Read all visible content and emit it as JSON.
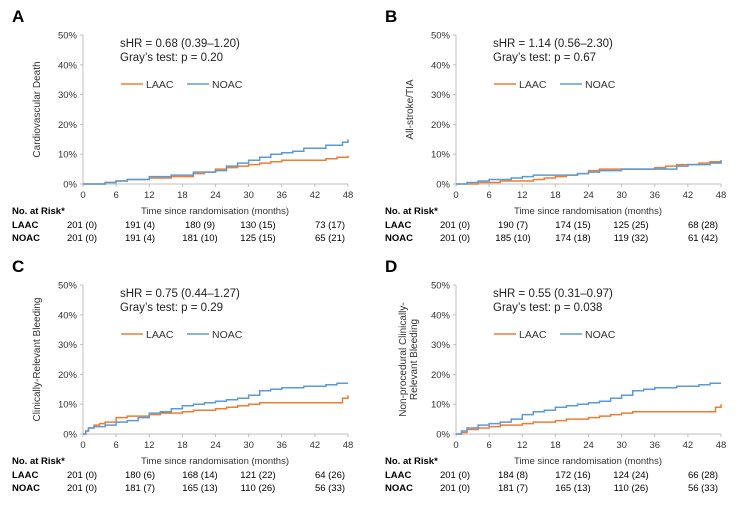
{
  "panels": [
    {
      "letter": "A",
      "stat_line1": "sHR = 0.68 (0.39–1.20)",
      "stat_line2": "Gray’s test: p = 0.20",
      "ylabel_lines": [
        "Cardiovascular  Death"
      ],
      "xlabel": "Time since randomisation  (months)",
      "risk_header": "No. at Risk*",
      "risk_rows": [
        {
          "name": "LAAC",
          "values": [
            "201 (0)",
            "191 (4)",
            "180 (9)",
            "130 (15)",
            "73 (17)"
          ]
        },
        {
          "name": "NOAC",
          "values": [
            "201 (0)",
            "191 (4)",
            "181 (10)",
            "125 (15)",
            "65 (21)"
          ]
        }
      ]
    },
    {
      "letter": "B",
      "stat_line1": "sHR = 1.14 (0.56–2.30)",
      "stat_line2": "Gray’s test: p = 0.67",
      "ylabel_lines": [
        "All-stroke/TIA"
      ],
      "xlabel": "Time since randomisation  (months)",
      "risk_header": "No. at Risk*",
      "risk_rows": [
        {
          "name": "LAAC",
          "values": [
            "201 (0)",
            "190 (7)",
            "174 (15)",
            "125 (25)",
            "68 (28)"
          ]
        },
        {
          "name": "NOAC",
          "values": [
            "201 (0)",
            "185 (10)",
            "174 (18)",
            "119 (32)",
            "61 (42)"
          ]
        }
      ]
    },
    {
      "letter": "C",
      "stat_line1": "sHR = 0.75 (0.44–1.27)",
      "stat_line2": "Gray’s test: p = 0.29",
      "ylabel_lines": [
        "Clinically-Relevant  Bleeding"
      ],
      "xlabel": "Time since randomisation  (months)",
      "risk_header": "No. at Risk*",
      "risk_rows": [
        {
          "name": "LAAC",
          "values": [
            "201 (0)",
            "180 (6)",
            "168 (14)",
            "121 (22)",
            "64 (26)"
          ]
        },
        {
          "name": "NOAC",
          "values": [
            "201 (0)",
            "181 (7)",
            "165 (13)",
            "110 (26)",
            "56 (33)"
          ]
        }
      ]
    },
    {
      "letter": "D",
      "stat_line1": "sHR = 0.55 (0.31–0.97)",
      "stat_line2": "Gray’s test: p = 0.038",
      "ylabel_lines": [
        "Non-procedural  Clinically-",
        "Relevant  Bleeding"
      ],
      "xlabel": "Time since randomisation  (months)",
      "risk_header": "No. at Risk*",
      "risk_rows": [
        {
          "name": "LAAC",
          "values": [
            "201 (0)",
            "184 (8)",
            "172 (16)",
            "124 (24)",
            "66 (28)"
          ]
        },
        {
          "name": "NOAC",
          "values": [
            "201 (0)",
            "181 (7)",
            "165 (13)",
            "110 (26)",
            "56 (33)"
          ]
        }
      ]
    }
  ],
  "chart_data": [
    {
      "type": "line",
      "x_ticks": [
        0,
        6,
        12,
        18,
        24,
        30,
        36,
        42,
        48
      ],
      "y_ticks": [
        "0%",
        "10%",
        "20%",
        "30%",
        "40%",
        "50%"
      ],
      "xlim": [
        0,
        48
      ],
      "ylim": [
        0,
        50
      ],
      "legend_placement": "upper-left",
      "series": [
        {
          "name": "LAAC",
          "color": "#ED7D31",
          "x": [
            0,
            2,
            4,
            6,
            8,
            12,
            16,
            20,
            22,
            24,
            26,
            28,
            30,
            32,
            34,
            36,
            40,
            44,
            46,
            48
          ],
          "y": [
            0,
            0,
            0.5,
            1,
            1.5,
            2,
            2.5,
            3.5,
            4,
            5,
            5.5,
            6,
            6.5,
            7,
            7.5,
            8,
            8,
            8.5,
            9,
            9.5
          ]
        },
        {
          "name": "NOAC",
          "color": "#5B9BD5",
          "x": [
            0,
            2,
            4,
            6,
            8,
            12,
            16,
            20,
            24,
            26,
            28,
            30,
            32,
            34,
            36,
            38,
            40,
            44,
            46,
            47,
            48
          ],
          "y": [
            0,
            0,
            0.5,
            1,
            1.5,
            2.5,
            3,
            4,
            4.5,
            6,
            7,
            8,
            9,
            10,
            10.5,
            11,
            12,
            13,
            13,
            14,
            15
          ]
        }
      ]
    },
    {
      "type": "line",
      "x_ticks": [
        0,
        6,
        12,
        18,
        24,
        30,
        36,
        42,
        48
      ],
      "y_ticks": [
        "0%",
        "10%",
        "20%",
        "30%",
        "40%",
        "50%"
      ],
      "xlim": [
        0,
        48
      ],
      "ylim": [
        0,
        50
      ],
      "legend_placement": "upper-left",
      "series": [
        {
          "name": "LAAC",
          "color": "#ED7D31",
          "x": [
            0,
            2,
            4,
            6,
            8,
            12,
            14,
            16,
            18,
            20,
            22,
            24,
            26,
            30,
            34,
            36,
            38,
            40,
            44,
            46,
            48
          ],
          "y": [
            0,
            0,
            0.5,
            0.5,
            1,
            1,
            1.5,
            2,
            2.5,
            3,
            3.5,
            4.5,
            5,
            5,
            5,
            5.5,
            6,
            6.5,
            7,
            7.5,
            8
          ]
        },
        {
          "name": "NOAC",
          "color": "#5B9BD5",
          "x": [
            0,
            2,
            4,
            6,
            8,
            10,
            12,
            14,
            18,
            22,
            24,
            26,
            30,
            34,
            36,
            40,
            42,
            46,
            48
          ],
          "y": [
            0,
            0.5,
            1,
            1.5,
            1.5,
            2,
            2.5,
            3,
            3,
            3.5,
            4,
            4.5,
            5,
            5,
            5,
            6,
            6.5,
            7,
            8
          ]
        }
      ]
    },
    {
      "type": "line",
      "x_ticks": [
        0,
        6,
        12,
        18,
        24,
        30,
        36,
        42,
        48
      ],
      "y_ticks": [
        "0%",
        "10%",
        "20%",
        "30%",
        "40%",
        "50%"
      ],
      "xlim": [
        0,
        48
      ],
      "ylim": [
        0,
        50
      ],
      "legend_placement": "upper-left",
      "series": [
        {
          "name": "LAAC",
          "color": "#ED7D31",
          "x": [
            0,
            0.5,
            1,
            2,
            3,
            4,
            6,
            8,
            10,
            12,
            14,
            16,
            18,
            20,
            22,
            24,
            26,
            28,
            30,
            32,
            36,
            40,
            44,
            46,
            47,
            48
          ],
          "y": [
            0,
            1,
            2,
            3,
            3.5,
            4,
            5.5,
            6,
            6,
            6.5,
            7,
            7,
            7.5,
            8,
            8,
            8.5,
            9,
            9.5,
            10,
            10.5,
            10.5,
            10.5,
            10.5,
            10.5,
            12,
            13
          ]
        },
        {
          "name": "NOAC",
          "color": "#5B9BD5",
          "x": [
            0,
            0.5,
            1,
            2,
            4,
            6,
            8,
            10,
            12,
            14,
            16,
            18,
            20,
            22,
            24,
            26,
            28,
            30,
            32,
            34,
            36,
            40,
            44,
            46,
            48
          ],
          "y": [
            0,
            1,
            2,
            2.5,
            3,
            4,
            4.5,
            5.5,
            7,
            7.5,
            8.5,
            9.5,
            10,
            10.5,
            11,
            11.5,
            12,
            13,
            14.5,
            15,
            15.5,
            16,
            16.5,
            17,
            17
          ]
        }
      ]
    },
    {
      "type": "line",
      "x_ticks": [
        0,
        6,
        12,
        18,
        24,
        30,
        36,
        42,
        48
      ],
      "y_ticks": [
        "0%",
        "10%",
        "20%",
        "30%",
        "40%",
        "50%"
      ],
      "xlim": [
        0,
        48
      ],
      "ylim": [
        0,
        50
      ],
      "legend_placement": "upper-left",
      "series": [
        {
          "name": "LAAC",
          "color": "#ED7D31",
          "x": [
            0,
            1,
            2,
            4,
            6,
            8,
            10,
            12,
            14,
            16,
            18,
            20,
            22,
            24,
            26,
            28,
            30,
            32,
            36,
            40,
            44,
            46,
            47,
            48
          ],
          "y": [
            0,
            0.5,
            1.5,
            2,
            2.5,
            3,
            3,
            3.5,
            4,
            4,
            4.5,
            5,
            5,
            5.5,
            6,
            6.5,
            7,
            7.5,
            7.5,
            7.5,
            7.5,
            7.5,
            9,
            10
          ]
        },
        {
          "name": "NOAC",
          "color": "#5B9BD5",
          "x": [
            0,
            1,
            2,
            4,
            6,
            8,
            10,
            12,
            14,
            16,
            18,
            20,
            22,
            24,
            26,
            28,
            30,
            32,
            34,
            36,
            40,
            44,
            46,
            48
          ],
          "y": [
            0,
            1,
            2,
            3,
            3.5,
            4,
            5,
            6.5,
            7.5,
            8,
            9,
            9.5,
            10,
            10.5,
            11,
            12,
            13,
            14.5,
            15,
            15.5,
            16,
            16.5,
            17,
            17
          ]
        }
      ]
    }
  ]
}
